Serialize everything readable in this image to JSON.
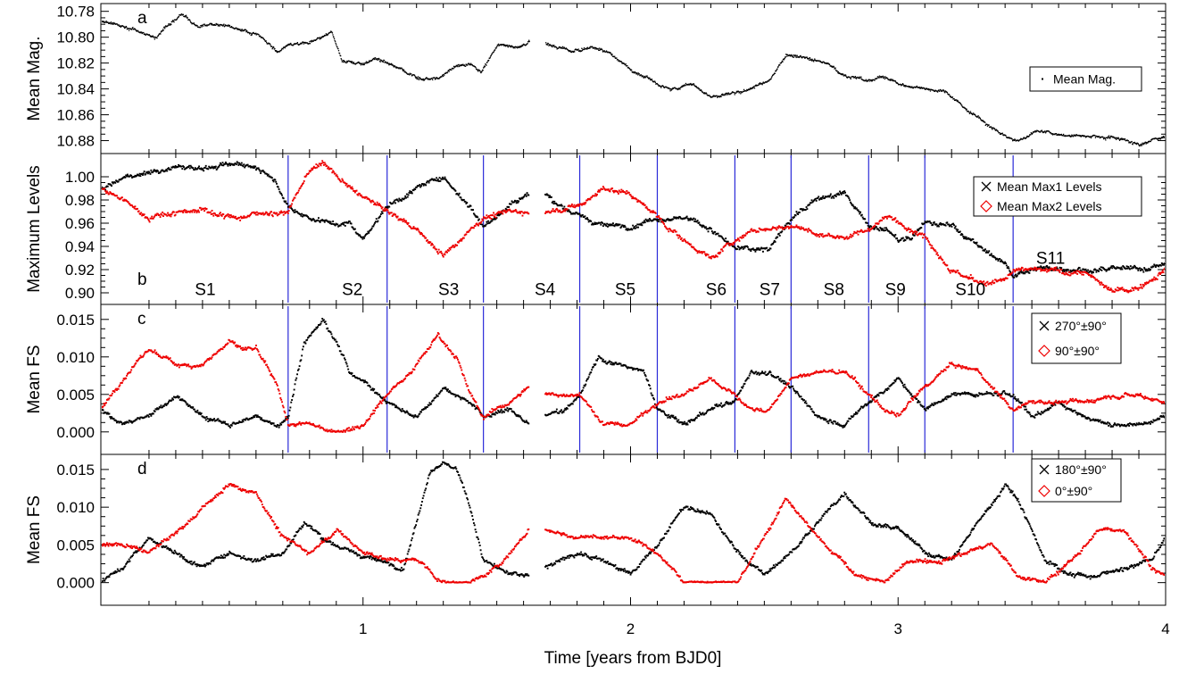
{
  "xlabel": "Time [years from BJD0]",
  "xlim": [
    0.02,
    4.0
  ],
  "xticks": [
    "1",
    "2",
    "3",
    "4"
  ],
  "colors": {
    "black_series": "#000000",
    "red_series": "#ee0000",
    "segment_lines": "#2a2ad8"
  },
  "chart_data": [
    {
      "type": "scatter",
      "panel_label": "a",
      "ylabel": "Mean Mag.",
      "ylim": [
        10.89,
        10.774
      ],
      "y_inverted": true,
      "yticks": [
        "10.78",
        "10.80",
        "10.82",
        "10.84",
        "10.86",
        "10.88"
      ],
      "legend": {
        "placement": "right",
        "entries": [
          {
            "label": "Mean Mag.",
            "marker": "dot",
            "color": "#000000"
          }
        ]
      },
      "series": [
        {
          "name": "Mean Mag.",
          "color": "#000000",
          "gaps": [
            [
              1.62,
              1.68
            ]
          ],
          "x": [
            0.02,
            0.12,
            0.22,
            0.32,
            0.38,
            0.45,
            0.52,
            0.6,
            0.68,
            0.72,
            0.8,
            0.88,
            0.92,
            1.0,
            1.05,
            1.1,
            1.2,
            1.28,
            1.35,
            1.4,
            1.44,
            1.5,
            1.58,
            1.62,
            1.68,
            1.78,
            1.85,
            1.92,
            2.0,
            2.08,
            2.15,
            2.22,
            2.3,
            2.38,
            2.45,
            2.52,
            2.58,
            2.65,
            2.72,
            2.8,
            2.88,
            2.95,
            3.0,
            3.1,
            3.18,
            3.25,
            3.32,
            3.4,
            3.45,
            3.52,
            3.6,
            3.7,
            3.8,
            3.9,
            4.0
          ],
          "y": [
            10.787,
            10.792,
            10.8,
            10.781,
            10.792,
            10.789,
            10.793,
            10.797,
            10.811,
            10.805,
            10.803,
            10.795,
            10.818,
            10.821,
            10.816,
            10.82,
            10.832,
            10.831,
            10.822,
            10.82,
            10.827,
            10.805,
            10.808,
            10.803,
            10.805,
            10.811,
            10.807,
            10.812,
            10.825,
            10.834,
            10.84,
            10.836,
            10.846,
            10.842,
            10.839,
            10.832,
            10.814,
            10.816,
            10.819,
            10.83,
            10.833,
            10.83,
            10.836,
            10.84,
            10.842,
            10.855,
            10.866,
            10.876,
            10.88,
            10.872,
            10.875,
            10.876,
            10.877,
            10.882,
            10.876
          ]
        }
      ]
    },
    {
      "type": "scatter",
      "panel_label": "b",
      "ylabel": "Maximum Levels",
      "ylim": [
        0.89,
        1.02
      ],
      "yticks": [
        "0.90",
        "0.92",
        "0.94",
        "0.96",
        "0.98",
        "1.00"
      ],
      "legend": {
        "placement": "right",
        "entries": [
          {
            "label": "Mean Max1 Levels",
            "marker": "x",
            "color": "#000000"
          },
          {
            "label": "Mean Max2 Levels",
            "marker": "diamond",
            "color": "#ee0000"
          }
        ]
      },
      "segment_boundaries": [
        0.72,
        1.09,
        1.45,
        1.81,
        2.1,
        2.39,
        2.6,
        2.89,
        3.1,
        3.43
      ],
      "segments": [
        {
          "label": "S1",
          "x": 0.41
        },
        {
          "label": "S2",
          "x": 0.96
        },
        {
          "label": "S3",
          "x": 1.32
        },
        {
          "label": "S4",
          "x": 1.68
        },
        {
          "label": "S5",
          "x": 1.98
        },
        {
          "label": "S6",
          "x": 2.32
        },
        {
          "label": "S7",
          "x": 2.52
        },
        {
          "label": "S8",
          "x": 2.76
        },
        {
          "label": "S9",
          "x": 2.99
        },
        {
          "label": "S10",
          "x": 3.27
        },
        {
          "label": "S11",
          "x": 3.57
        }
      ],
      "series": [
        {
          "name": "Mean Max1 Levels",
          "color": "#000000",
          "gaps": [
            [
              1.62,
              1.68
            ]
          ],
          "x": [
            0.02,
            0.15,
            0.3,
            0.45,
            0.55,
            0.65,
            0.72,
            0.8,
            0.88,
            0.95,
            1.0,
            1.09,
            1.2,
            1.3,
            1.4,
            1.45,
            1.55,
            1.62,
            1.68,
            1.81,
            1.9,
            2.0,
            2.1,
            2.2,
            2.3,
            2.39,
            2.45,
            2.52,
            2.6,
            2.7,
            2.8,
            2.89,
            2.95,
            3.0,
            3.05,
            3.1,
            3.2,
            3.3,
            3.4,
            3.43,
            3.5,
            3.6,
            3.7,
            3.8,
            3.9,
            4.0
          ],
          "y": [
            0.99,
            1.002,
            1.008,
            1.008,
            1.012,
            1.005,
            0.975,
            0.965,
            0.96,
            0.96,
            0.947,
            0.975,
            0.99,
            1.0,
            0.975,
            0.957,
            0.977,
            0.985,
            0.985,
            0.965,
            0.958,
            0.958,
            0.965,
            0.965,
            0.955,
            0.938,
            0.937,
            0.938,
            0.965,
            0.982,
            0.985,
            0.958,
            0.955,
            0.945,
            0.947,
            0.96,
            0.958,
            0.94,
            0.925,
            0.915,
            0.92,
            0.922,
            0.92,
            0.92,
            0.92,
            0.925
          ]
        },
        {
          "name": "Mean Max2 Levels",
          "color": "#ee0000",
          "gaps": [
            [
              1.62,
              1.68
            ]
          ],
          "x": [
            0.02,
            0.1,
            0.2,
            0.3,
            0.4,
            0.5,
            0.6,
            0.72,
            0.8,
            0.85,
            0.95,
            1.09,
            1.2,
            1.3,
            1.4,
            1.45,
            1.55,
            1.62,
            1.68,
            1.81,
            1.9,
            2.0,
            2.1,
            2.2,
            2.3,
            2.39,
            2.45,
            2.52,
            2.6,
            2.7,
            2.8,
            2.89,
            2.95,
            3.0,
            3.1,
            3.2,
            3.3,
            3.4,
            3.43,
            3.5,
            3.6,
            3.7,
            3.8,
            3.9,
            4.0
          ],
          "y": [
            0.99,
            0.98,
            0.965,
            0.97,
            0.972,
            0.965,
            0.968,
            0.97,
            1.005,
            1.012,
            0.99,
            0.97,
            0.955,
            0.932,
            0.955,
            0.965,
            0.97,
            0.97,
            0.97,
            0.975,
            0.99,
            0.985,
            0.965,
            0.945,
            0.93,
            0.945,
            0.953,
            0.955,
            0.958,
            0.95,
            0.948,
            0.955,
            0.965,
            0.962,
            0.95,
            0.92,
            0.908,
            0.91,
            0.918,
            0.92,
            0.918,
            0.918,
            0.9,
            0.905,
            0.922
          ]
        }
      ]
    },
    {
      "type": "scatter",
      "panel_label": "c",
      "ylabel": "Mean FS",
      "ylim": [
        -0.003,
        0.017
      ],
      "yticks": [
        "0.000",
        "0.005",
        "0.010",
        "0.015"
      ],
      "legend": {
        "placement": "right",
        "entries": [
          {
            "label": "270°±90°",
            "marker": "x",
            "color": "#000000"
          },
          {
            "label": "90°±90°",
            "marker": "diamond",
            "color": "#ee0000"
          }
        ]
      },
      "series": [
        {
          "name": "270°±90°",
          "color": "#000000",
          "gaps": [
            [
              1.62,
              1.68
            ]
          ],
          "x": [
            0.02,
            0.1,
            0.2,
            0.3,
            0.4,
            0.5,
            0.6,
            0.68,
            0.72,
            0.78,
            0.85,
            0.9,
            0.95,
            1.0,
            1.09,
            1.2,
            1.3,
            1.4,
            1.45,
            1.55,
            1.62,
            1.68,
            1.75,
            1.81,
            1.88,
            1.95,
            2.05,
            2.1,
            2.2,
            2.3,
            2.39,
            2.45,
            2.52,
            2.6,
            2.7,
            2.8,
            2.89,
            3.0,
            3.1,
            3.2,
            3.3,
            3.43,
            3.5,
            3.6,
            3.7,
            3.8,
            3.9,
            4.0
          ],
          "y": [
            0.003,
            0.001,
            0.002,
            0.005,
            0.002,
            0.001,
            0.002,
            0.001,
            0.002,
            0.012,
            0.015,
            0.012,
            0.008,
            0.007,
            0.004,
            0.002,
            0.006,
            0.004,
            0.002,
            0.003,
            0.001,
            0.002,
            0.003,
            0.005,
            0.01,
            0.009,
            0.008,
            0.003,
            0.001,
            0.003,
            0.004,
            0.008,
            0.008,
            0.006,
            0.002,
            0.001,
            0.004,
            0.007,
            0.003,
            0.005,
            0.005,
            0.005,
            0.002,
            0.004,
            0.002,
            0.001,
            0.001,
            0.002
          ]
        },
        {
          "name": "90°±90°",
          "color": "#ee0000",
          "gaps": [
            [
              1.62,
              1.68
            ]
          ],
          "x": [
            0.02,
            0.1,
            0.2,
            0.3,
            0.4,
            0.5,
            0.55,
            0.6,
            0.68,
            0.72,
            0.8,
            0.9,
            1.0,
            1.09,
            1.2,
            1.28,
            1.35,
            1.4,
            1.45,
            1.55,
            1.62,
            1.68,
            1.81,
            1.9,
            2.0,
            2.1,
            2.2,
            2.3,
            2.39,
            2.45,
            2.52,
            2.6,
            2.7,
            2.8,
            2.89,
            2.95,
            3.0,
            3.1,
            3.2,
            3.3,
            3.43,
            3.5,
            3.6,
            3.7,
            3.8,
            3.9,
            4.0
          ],
          "y": [
            0.003,
            0.007,
            0.011,
            0.009,
            0.009,
            0.012,
            0.011,
            0.011,
            0.006,
            0.001,
            0.001,
            0.0,
            0.001,
            0.005,
            0.009,
            0.013,
            0.01,
            0.005,
            0.002,
            0.004,
            0.006,
            0.005,
            0.005,
            0.001,
            0.001,
            0.004,
            0.005,
            0.007,
            0.005,
            0.003,
            0.003,
            0.007,
            0.008,
            0.008,
            0.005,
            0.003,
            0.002,
            0.006,
            0.009,
            0.008,
            0.003,
            0.004,
            0.004,
            0.004,
            0.005,
            0.005,
            0.004
          ]
        }
      ]
    },
    {
      "type": "scatter",
      "panel_label": "d",
      "ylabel": "Mean FS",
      "ylim": [
        -0.003,
        0.017
      ],
      "yticks": [
        "0.000",
        "0.005",
        "0.010",
        "0.015"
      ],
      "legend": {
        "placement": "right",
        "entries": [
          {
            "label": "180°±90°",
            "marker": "x",
            "color": "#000000"
          },
          {
            "label": "0°±90°",
            "marker": "diamond",
            "color": "#ee0000"
          }
        ]
      },
      "series": [
        {
          "name": "180°±90°",
          "color": "#000000",
          "gaps": [
            [
              1.62,
              1.68
            ]
          ],
          "x": [
            0.02,
            0.1,
            0.2,
            0.3,
            0.4,
            0.5,
            0.6,
            0.7,
            0.78,
            0.85,
            0.95,
            1.05,
            1.15,
            1.2,
            1.25,
            1.3,
            1.35,
            1.4,
            1.45,
            1.55,
            1.62,
            1.68,
            1.8,
            1.9,
            2.0,
            2.1,
            2.2,
            2.3,
            2.4,
            2.5,
            2.6,
            2.7,
            2.8,
            2.9,
            3.0,
            3.1,
            3.2,
            3.3,
            3.4,
            3.45,
            3.55,
            3.65,
            3.75,
            3.85,
            3.95,
            4.0
          ],
          "y": [
            0.0,
            0.002,
            0.006,
            0.004,
            0.002,
            0.004,
            0.003,
            0.004,
            0.008,
            0.006,
            0.004,
            0.003,
            0.002,
            0.008,
            0.015,
            0.016,
            0.015,
            0.01,
            0.003,
            0.001,
            0.001,
            0.002,
            0.004,
            0.003,
            0.001,
            0.005,
            0.01,
            0.009,
            0.004,
            0.001,
            0.004,
            0.008,
            0.012,
            0.008,
            0.007,
            0.004,
            0.003,
            0.008,
            0.013,
            0.011,
            0.003,
            0.001,
            0.001,
            0.002,
            0.003,
            0.006
          ]
        },
        {
          "name": "0°±90°",
          "color": "#ee0000",
          "gaps": [
            [
              1.62,
              1.68
            ]
          ],
          "x": [
            0.02,
            0.1,
            0.2,
            0.28,
            0.35,
            0.4,
            0.5,
            0.6,
            0.7,
            0.8,
            0.9,
            1.0,
            1.1,
            1.2,
            1.3,
            1.4,
            1.5,
            1.6,
            1.62,
            1.68,
            1.8,
            1.9,
            2.0,
            2.1,
            2.2,
            2.3,
            2.4,
            2.5,
            2.58,
            2.65,
            2.75,
            2.85,
            2.95,
            3.05,
            3.15,
            3.25,
            3.35,
            3.45,
            3.55,
            3.65,
            3.75,
            3.85,
            3.95,
            4.0
          ],
          "y": [
            0.005,
            0.005,
            0.004,
            0.006,
            0.008,
            0.01,
            0.013,
            0.012,
            0.006,
            0.004,
            0.007,
            0.004,
            0.003,
            0.003,
            0.0,
            0.0,
            0.002,
            0.006,
            0.007,
            0.007,
            0.006,
            0.006,
            0.006,
            0.004,
            0.0,
            0.0,
            0.0,
            0.006,
            0.011,
            0.008,
            0.004,
            0.001,
            0.0,
            0.003,
            0.003,
            0.004,
            0.005,
            0.001,
            0.0,
            0.003,
            0.007,
            0.007,
            0.002,
            0.001
          ]
        }
      ]
    }
  ]
}
